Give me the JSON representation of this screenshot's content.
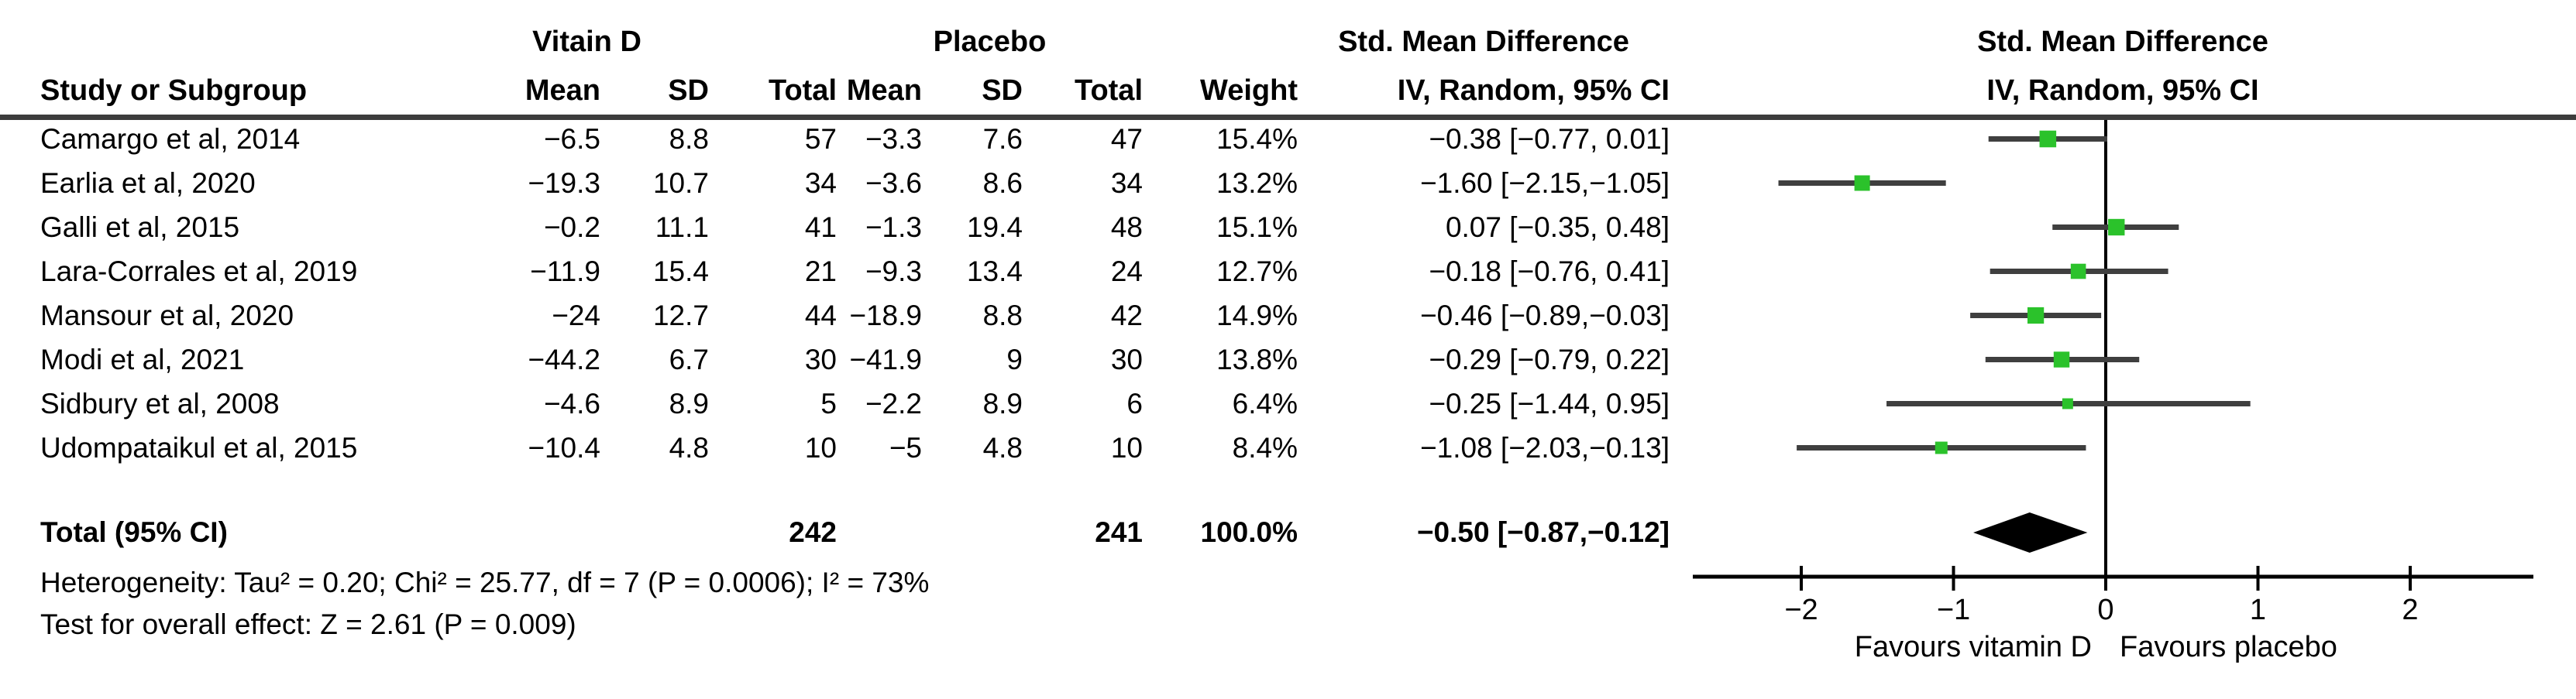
{
  "colors": {
    "square_green": "#2bc22b",
    "ci_line": "#3f3f3f",
    "diamond": "#000000",
    "header_rule": "#3c3c3c",
    "axis": "#000000",
    "text": "#000000",
    "background": "#ffffff"
  },
  "header": {
    "study_col": "Study or Subgroup",
    "group1": "Vitain D",
    "group2": "Placebo",
    "mean": "Mean",
    "sd": "SD",
    "total": "Total",
    "weight": "Weight",
    "effect_header": "Std. Mean Difference",
    "effect_subheader": "IV, Random, 95% CI",
    "plot_header": "Std. Mean Difference",
    "plot_subheader": "IV, Random, 95% CI"
  },
  "studies": [
    {
      "name": "Camargo et al, 2014",
      "t_mean": "−6.5",
      "t_sd": "8.8",
      "t_total": "57",
      "c_mean": "−3.3",
      "c_sd": "7.6",
      "c_total": "47",
      "weight": "15.4%",
      "ci_text": "−0.38 [−0.77, 0.01]",
      "smd": -0.38,
      "ci_low": -0.77,
      "ci_high": 0.01,
      "weight_pct": 15.4
    },
    {
      "name": "Earlia et al, 2020",
      "t_mean": "−19.3",
      "t_sd": "10.7",
      "t_total": "34",
      "c_mean": "−3.6",
      "c_sd": "8.6",
      "c_total": "34",
      "weight": "13.2%",
      "ci_text": "−1.60 [−2.15,−1.05]",
      "smd": -1.6,
      "ci_low": -2.15,
      "ci_high": -1.05,
      "weight_pct": 13.2
    },
    {
      "name": "Galli et al, 2015",
      "t_mean": "−0.2",
      "t_sd": "11.1",
      "t_total": "41",
      "c_mean": "−1.3",
      "c_sd": "19.4",
      "c_total": "48",
      "weight": "15.1%",
      "ci_text": "0.07 [−0.35, 0.48]",
      "smd": 0.07,
      "ci_low": -0.35,
      "ci_high": 0.48,
      "weight_pct": 15.1
    },
    {
      "name": "Lara-Corrales et al, 2019",
      "t_mean": "−11.9",
      "t_sd": "15.4",
      "t_total": "21",
      "c_mean": "−9.3",
      "c_sd": "13.4",
      "c_total": "24",
      "weight": "12.7%",
      "ci_text": "−0.18 [−0.76, 0.41]",
      "smd": -0.18,
      "ci_low": -0.76,
      "ci_high": 0.41,
      "weight_pct": 12.7
    },
    {
      "name": "Mansour et al, 2020",
      "t_mean": "−24",
      "t_sd": "12.7",
      "t_total": "44",
      "c_mean": "−18.9",
      "c_sd": "8.8",
      "c_total": "42",
      "weight": "14.9%",
      "ci_text": "−0.46 [−0.89,−0.03]",
      "smd": -0.46,
      "ci_low": -0.89,
      "ci_high": -0.03,
      "weight_pct": 14.9
    },
    {
      "name": "Modi et al, 2021",
      "t_mean": "−44.2",
      "t_sd": "6.7",
      "t_total": "30",
      "c_mean": "−41.9",
      "c_sd": "9",
      "c_total": "30",
      "weight": "13.8%",
      "ci_text": "−0.29 [−0.79, 0.22]",
      "smd": -0.29,
      "ci_low": -0.79,
      "ci_high": 0.22,
      "weight_pct": 13.8
    },
    {
      "name": "Sidbury et al, 2008",
      "t_mean": "−4.6",
      "t_sd": "8.9",
      "t_total": "5",
      "c_mean": "−2.2",
      "c_sd": "8.9",
      "c_total": "6",
      "weight": "6.4%",
      "ci_text": "−0.25 [−1.44, 0.95]",
      "smd": -0.25,
      "ci_low": -1.44,
      "ci_high": 0.95,
      "weight_pct": 6.4
    },
    {
      "name": "Udompataikul et al, 2015",
      "t_mean": "−10.4",
      "t_sd": "4.8",
      "t_total": "10",
      "c_mean": "−5",
      "c_sd": "4.8",
      "c_total": "10",
      "weight": "8.4%",
      "ci_text": "−1.08 [−2.03,−0.13]",
      "smd": -1.08,
      "ci_low": -2.03,
      "ci_high": -0.13,
      "weight_pct": 8.4
    }
  ],
  "total_row": {
    "label": "Total (95% CI)",
    "t_total": "242",
    "c_total": "241",
    "weight": "100.0%",
    "ci_text": "−0.50 [−0.87,−0.12]",
    "smd": -0.5,
    "ci_low": -0.87,
    "ci_high": -0.12
  },
  "footer": {
    "heterogeneity": "Heterogeneity: Tau² = 0.20; Chi² = 25.77, df = 7 (P = 0.0006); I² = 73%",
    "overall_effect": "Test for overall effect: Z = 2.61 (P = 0.009)"
  },
  "axis": {
    "tick_values": [
      -2,
      -1,
      0,
      1,
      2
    ],
    "tick_labels": [
      "−2",
      "−1",
      "0",
      "1",
      "2"
    ],
    "favours_left": "Favours vitamin D",
    "favours_right": "Favours placebo"
  },
  "chart_data": {
    "type": "scatter",
    "subtype": "forest_plot_random_effects",
    "title": "Std. Mean Difference",
    "method": "IV, Random, 95% CI",
    "categories": [
      "Camargo et al, 2014",
      "Earlia et al, 2020",
      "Galli et al, 2015",
      "Lara-Corrales et al, 2019",
      "Mansour et al, 2020",
      "Modi et al, 2021",
      "Sidbury et al, 2008",
      "Udompataikul et al, 2015"
    ],
    "series": [
      {
        "name": "SMD",
        "values": [
          -0.38,
          -1.6,
          0.07,
          -0.18,
          -0.46,
          -0.29,
          -0.25,
          -1.08
        ]
      },
      {
        "name": "CI_lower",
        "values": [
          -0.77,
          -2.15,
          -0.35,
          -0.76,
          -0.89,
          -0.79,
          -1.44,
          -2.03
        ]
      },
      {
        "name": "CI_upper",
        "values": [
          0.01,
          -1.05,
          0.48,
          0.41,
          -0.03,
          0.22,
          0.95,
          -0.13
        ]
      },
      {
        "name": "Weight_pct",
        "values": [
          15.4,
          13.2,
          15.1,
          12.7,
          14.9,
          13.8,
          6.4,
          8.4
        ]
      }
    ],
    "overall": {
      "label": "Total (95% CI)",
      "smd": -0.5,
      "ci_lower": -0.87,
      "ci_upper": -0.12,
      "weight_pct": 100.0
    },
    "treatment_totals": {
      "treatment_n": 242,
      "placebo_n": 241
    },
    "xlim": [
      -2.71,
      2.81
    ],
    "ticks": [
      -2,
      -1,
      0,
      1,
      2
    ],
    "xlabel": "Favours vitamin D  Favours placebo",
    "grid": false,
    "legend": false,
    "heterogeneity": {
      "tau2": 0.2,
      "chi2": 25.77,
      "df": 7,
      "p": 0.0006,
      "i2_pct": 73
    },
    "overall_effect_test": {
      "z": 2.61,
      "p": 0.009
    }
  }
}
